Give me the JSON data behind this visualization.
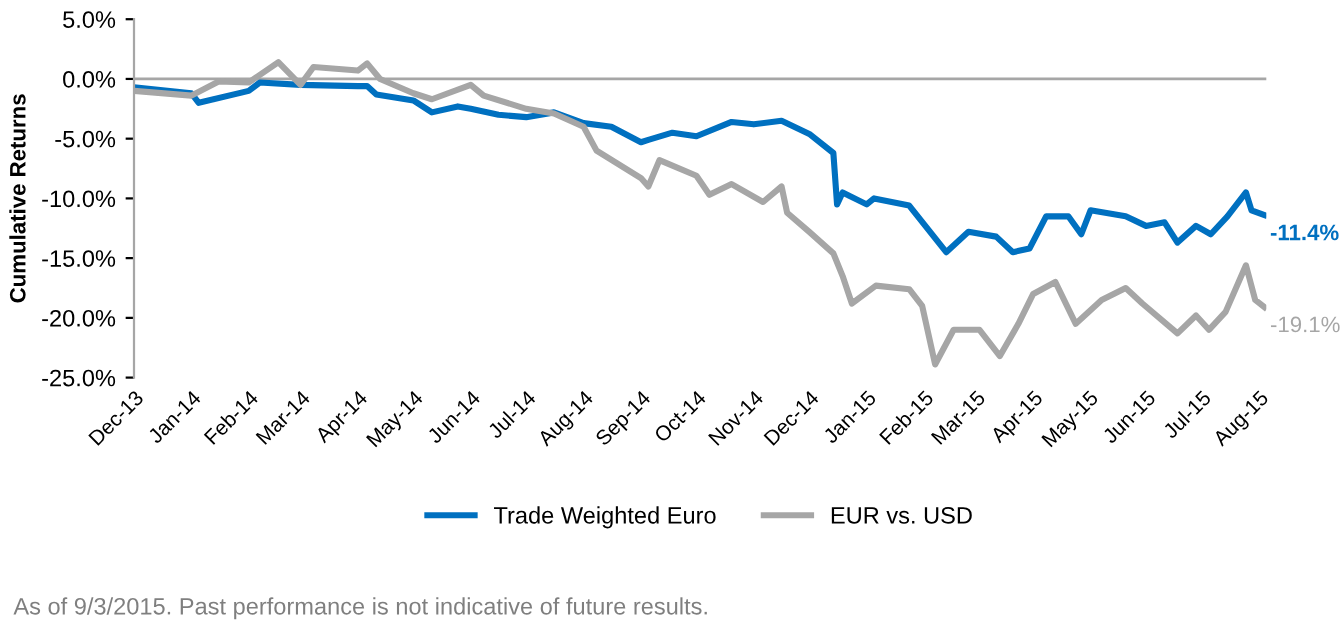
{
  "chart_data": {
    "type": "line",
    "ylabel": "Cumulative Returns",
    "ylim": [
      -25,
      5
    ],
    "yticks": [
      {
        "value": 5,
        "label": "5.0%"
      },
      {
        "value": 0,
        "label": "0.0%"
      },
      {
        "value": -5,
        "label": "-5.0%"
      },
      {
        "value": -10,
        "label": "-10.0%"
      },
      {
        "value": -15,
        "label": "-15.0%"
      },
      {
        "value": -20,
        "label": "-20.0%"
      },
      {
        "value": -25,
        "label": "-25.0%"
      }
    ],
    "xlim": [
      "2013-12-01",
      "2015-08-05"
    ],
    "xticks": [
      {
        "value": "2013-12-01",
        "label": "Dec-13"
      },
      {
        "value": "2014-01-01",
        "label": "Jan-14"
      },
      {
        "value": "2014-02-01",
        "label": "Feb-14"
      },
      {
        "value": "2014-03-01",
        "label": "Mar-14"
      },
      {
        "value": "2014-04-01",
        "label": "Apr-14"
      },
      {
        "value": "2014-05-01",
        "label": "May-14"
      },
      {
        "value": "2014-06-01",
        "label": "Jun-14"
      },
      {
        "value": "2014-07-01",
        "label": "Jul-14"
      },
      {
        "value": "2014-08-01",
        "label": "Aug-14"
      },
      {
        "value": "2014-09-01",
        "label": "Sep-14"
      },
      {
        "value": "2014-10-01",
        "label": "Oct-14"
      },
      {
        "value": "2014-11-01",
        "label": "Nov-14"
      },
      {
        "value": "2014-12-01",
        "label": "Dec-14"
      },
      {
        "value": "2015-01-01",
        "label": "Jan-15"
      },
      {
        "value": "2015-02-01",
        "label": "Feb-15"
      },
      {
        "value": "2015-03-01",
        "label": "Mar-15"
      },
      {
        "value": "2015-04-01",
        "label": "Apr-15"
      },
      {
        "value": "2015-05-01",
        "label": "May-15"
      },
      {
        "value": "2015-06-01",
        "label": "Jun-15"
      },
      {
        "value": "2015-07-01",
        "label": "Jul-15"
      },
      {
        "value": "2015-08-01",
        "label": "Aug-15"
      }
    ],
    "series": [
      {
        "name": "Trade Weighted Euro",
        "color": "#0070c0",
        "x": [
          "2013-12-01",
          "2014-01-01",
          "2014-01-05",
          "2014-02-01",
          "2014-02-07",
          "2014-03-01",
          "2014-04-01",
          "2014-04-06",
          "2014-04-11",
          "2014-05-01",
          "2014-05-11",
          "2014-05-25",
          "2014-06-01",
          "2014-06-16",
          "2014-07-01",
          "2014-07-16",
          "2014-08-01",
          "2014-08-16",
          "2014-09-01",
          "2014-09-05",
          "2014-09-18",
          "2014-10-01",
          "2014-10-20",
          "2014-11-01",
          "2014-11-16",
          "2014-12-01",
          "2014-12-14",
          "2014-12-16",
          "2014-12-19",
          "2015-01-01",
          "2015-01-05",
          "2015-01-24",
          "2015-02-13",
          "2015-02-25",
          "2015-03-12",
          "2015-03-21",
          "2015-03-30",
          "2015-04-08",
          "2015-04-20",
          "2015-04-27",
          "2015-05-02",
          "2015-05-21",
          "2015-06-01",
          "2015-06-11",
          "2015-06-18",
          "2015-06-28",
          "2015-07-06",
          "2015-07-15",
          "2015-07-25",
          "2015-07-28",
          "2015-08-04"
        ],
        "values": [
          -0.7,
          -1.2,
          -2.0,
          -1.0,
          -0.3,
          -0.5,
          -0.6,
          -0.6,
          -1.3,
          -1.8,
          -2.8,
          -2.3,
          -2.5,
          -3.0,
          -3.2,
          -2.8,
          -3.7,
          -4.0,
          -5.3,
          -5.1,
          -4.5,
          -4.8,
          -3.6,
          -3.8,
          -3.5,
          -4.6,
          -6.2,
          -10.5,
          -9.5,
          -10.5,
          -10.0,
          -10.6,
          -14.5,
          -12.8,
          -13.2,
          -14.5,
          -14.2,
          -11.5,
          -11.5,
          -13.0,
          -11.0,
          -11.5,
          -12.3,
          -12.0,
          -13.7,
          -12.3,
          -13.0,
          -11.5,
          -9.5,
          -11.0,
          -11.4
        ]
      },
      {
        "name": "EUR vs. USD",
        "color": "#a6a6a6",
        "x": [
          "2013-12-01",
          "2014-01-01",
          "2014-01-16",
          "2014-02-01",
          "2014-02-17",
          "2014-03-01",
          "2014-03-08",
          "2014-04-01",
          "2014-04-06",
          "2014-04-13",
          "2014-05-01",
          "2014-05-11",
          "2014-06-01",
          "2014-06-08",
          "2014-07-01",
          "2014-07-16",
          "2014-08-01",
          "2014-08-08",
          "2014-09-01",
          "2014-09-05",
          "2014-09-11",
          "2014-10-01",
          "2014-10-08",
          "2014-10-20",
          "2014-11-06",
          "2014-11-16",
          "2014-11-19",
          "2014-12-01",
          "2014-12-14",
          "2014-12-19",
          "2014-12-24",
          "2015-01-06",
          "2015-01-24",
          "2015-01-31",
          "2015-02-07",
          "2015-02-17",
          "2015-03-03",
          "2015-03-14",
          "2015-03-24",
          "2015-04-01",
          "2015-04-13",
          "2015-04-24",
          "2015-05-08",
          "2015-05-21",
          "2015-05-30",
          "2015-06-18",
          "2015-06-28",
          "2015-07-05",
          "2015-07-14",
          "2015-07-25",
          "2015-07-30",
          "2015-08-04"
        ],
        "values": [
          -1.0,
          -1.4,
          -0.2,
          -0.3,
          1.4,
          -0.5,
          1.0,
          0.7,
          1.3,
          0.0,
          -1.2,
          -1.7,
          -0.5,
          -1.4,
          -2.5,
          -2.9,
          -4.0,
          -6.0,
          -8.3,
          -9.0,
          -6.8,
          -8.1,
          -9.7,
          -8.8,
          -10.3,
          -9.0,
          -11.2,
          -12.8,
          -14.6,
          -16.5,
          -18.8,
          -17.3,
          -17.6,
          -19.0,
          -23.9,
          -21.0,
          -21.0,
          -23.2,
          -20.5,
          -18.0,
          -17.0,
          -20.5,
          -18.5,
          -17.5,
          -18.8,
          -21.3,
          -19.8,
          -21.0,
          -19.5,
          -15.6,
          -18.5,
          -19.1
        ]
      }
    ],
    "ref_lines": [
      {
        "axis": "y",
        "value": 0,
        "color": "#a6a6a6"
      }
    ],
    "annotations": [
      {
        "text": "-11.4%",
        "x": "2015-08-04",
        "y": -11.4
      },
      {
        "text": "-19.1%",
        "x": "2015-08-04",
        "y": -19.1
      },
      "As of 9/3/2015. Past performance is not indicative of future results."
    ],
    "legend": "bottom",
    "grid": false
  }
}
